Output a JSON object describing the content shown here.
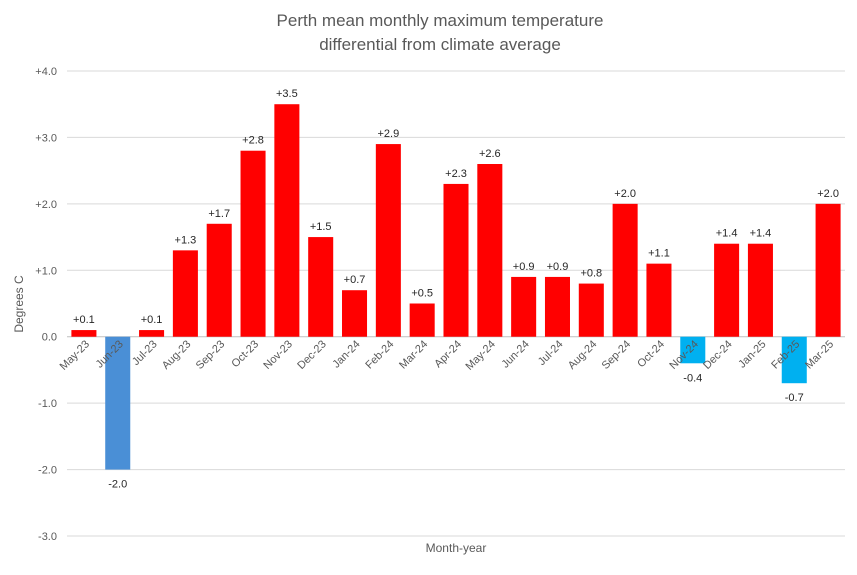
{
  "chart_data": {
    "type": "bar",
    "title": [
      "Perth mean monthly maximum temperature",
      "differential from climate average"
    ],
    "xlabel": "Month-year",
    "ylabel": "Degrees C",
    "ylim": [
      -3,
      4
    ],
    "yticks": [
      4,
      3,
      2,
      1,
      0,
      -1,
      -2,
      -3
    ],
    "ytick_labels": [
      "+4.0",
      "+3.0",
      "+2.0",
      "+1.0",
      "0.0",
      "-1.0",
      "-2.0",
      "-3.0"
    ],
    "grid": true,
    "legend": "none",
    "categories": [
      "May-23",
      "Jun-23",
      "Jul-23",
      "Aug-23",
      "Sep-23",
      "Oct-23",
      "Nov-23",
      "Dec-23",
      "Jan-24",
      "Feb-24",
      "Mar-24",
      "Apr-24",
      "May-24",
      "Jun-24",
      "Jul-24",
      "Aug-24",
      "Sep-24",
      "Oct-24",
      "Nov-24",
      "Dec-24",
      "Jan-25",
      "Feb-25",
      "Mar-25"
    ],
    "values": [
      0.1,
      -2.0,
      0.1,
      1.3,
      1.7,
      2.8,
      3.5,
      1.5,
      0.7,
      2.9,
      0.5,
      2.3,
      2.6,
      0.9,
      0.9,
      0.8,
      2.0,
      1.1,
      -0.4,
      1.4,
      1.4,
      -0.7,
      2.0
    ],
    "data_labels": [
      "+0.1",
      "-2.0",
      "+0.1",
      "+1.3",
      "+1.7",
      "+2.8",
      "+3.5",
      "+1.5",
      "+0.7",
      "+2.9",
      "+0.5",
      "+2.3",
      "+2.6",
      "+0.9",
      "+0.9",
      "+0.8",
      "+2.0",
      "+1.1",
      "-0.4",
      "+1.4",
      "+1.4",
      "-0.7",
      "+2.0"
    ],
    "bar_colors": [
      "#FF0000",
      "#4A8FD6",
      "#FF0000",
      "#FF0000",
      "#FF0000",
      "#FF0000",
      "#FF0000",
      "#FF0000",
      "#FF0000",
      "#FF0000",
      "#FF0000",
      "#FF0000",
      "#FF0000",
      "#FF0000",
      "#FF0000",
      "#FF0000",
      "#FF0000",
      "#FF0000",
      "#00B0F0",
      "#FF0000",
      "#FF0000",
      "#00B0F0",
      "#FF0000"
    ]
  }
}
